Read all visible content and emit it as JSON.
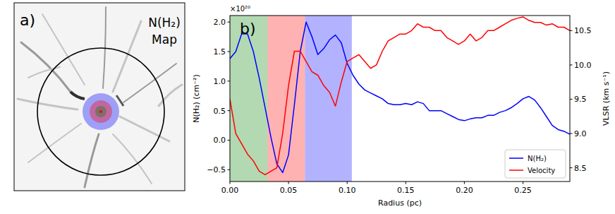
{
  "map_panel": {
    "label": "a)",
    "title": "N(H₂)",
    "subtitle": "Map"
  },
  "chart_data": {
    "type": "line",
    "panel_label": "b)",
    "x_label": "Radius (pc)",
    "y_label": "N(H₂) (cm⁻²)",
    "y_scale_label": "×10²⁰",
    "y2_label": "VLSR (km s⁻¹)",
    "x": [
      0,
      0.005,
      0.01,
      0.015,
      0.02,
      0.025,
      0.03,
      0.035,
      0.04,
      0.045,
      0.05,
      0.055,
      0.06,
      0.065,
      0.07,
      0.075,
      0.08,
      0.085,
      0.09,
      0.095,
      0.1,
      0.105,
      0.11,
      0.115,
      0.12,
      0.125,
      0.13,
      0.135,
      0.14,
      0.145,
      0.15,
      0.155,
      0.16,
      0.165,
      0.17,
      0.175,
      0.18,
      0.185,
      0.19,
      0.195,
      0.2,
      0.205,
      0.21,
      0.215,
      0.22,
      0.225,
      0.23,
      0.235,
      0.24,
      0.245,
      0.25,
      0.255,
      0.26,
      0.265,
      0.27,
      0.275,
      0.28,
      0.285,
      0.29
    ],
    "series": [
      {
        "name": "N(H₂)",
        "color": "#0000ff",
        "values": [
          1.38,
          1.5,
          1.8,
          1.8,
          1.5,
          1.05,
          0.55,
          0.05,
          -0.4,
          -0.55,
          -0.25,
          0.6,
          1.5,
          2.0,
          1.75,
          1.45,
          1.55,
          1.7,
          1.78,
          1.65,
          1.3,
          1.1,
          0.95,
          0.85,
          0.8,
          0.75,
          0.7,
          0.62,
          0.6,
          0.6,
          0.62,
          0.6,
          0.65,
          0.62,
          0.5,
          0.5,
          0.5,
          0.45,
          0.4,
          0.35,
          0.33,
          0.36,
          0.38,
          0.38,
          0.42,
          0.42,
          0.47,
          0.5,
          0.55,
          0.62,
          0.7,
          0.74,
          0.68,
          0.55,
          0.4,
          0.25,
          0.18,
          0.15,
          0.1
        ]
      },
      {
        "name": "Velocity",
        "color": "#ff0000",
        "axis": "y2",
        "values": [
          9.5,
          9.0,
          8.85,
          8.7,
          8.6,
          8.45,
          8.4,
          8.45,
          8.5,
          9.0,
          9.7,
          10.2,
          10.2,
          10.05,
          9.9,
          9.85,
          9.7,
          9.6,
          9.4,
          9.75,
          10.05,
          10.1,
          10.15,
          10.05,
          9.95,
          10.0,
          10.2,
          10.35,
          10.4,
          10.45,
          10.45,
          10.5,
          10.6,
          10.55,
          10.55,
          10.5,
          10.5,
          10.4,
          10.35,
          10.3,
          10.35,
          10.45,
          10.35,
          10.4,
          10.5,
          10.5,
          10.55,
          10.6,
          10.65,
          10.68,
          10.7,
          10.65,
          10.62,
          10.62,
          10.58,
          10.6,
          10.55,
          10.55,
          10.5
        ]
      }
    ],
    "regions": [
      {
        "x0": 0,
        "x1": 0.032,
        "color": "green"
      },
      {
        "x0": 0.032,
        "x1": 0.064,
        "color": "red"
      },
      {
        "x0": 0.064,
        "x1": 0.104,
        "color": "blue"
      }
    ],
    "xlim": [
      0,
      0.29
    ],
    "xticks": [
      {
        "value": 0,
        "label": "0.00"
      },
      {
        "value": 0.05,
        "label": "0.05"
      },
      {
        "value": 0.1,
        "label": "0.10"
      },
      {
        "value": 0.15,
        "label": "0.15"
      },
      {
        "value": 0.2,
        "label": "0.20"
      },
      {
        "value": 0.25,
        "label": "0.25"
      }
    ],
    "ylim": [
      -0.7,
      2.11
    ],
    "yticks": [
      {
        "value": -0.5,
        "label": "−0.5"
      },
      {
        "value": 0,
        "label": "0.0"
      },
      {
        "value": 0.5,
        "label": "0.5"
      },
      {
        "value": 1,
        "label": "1.0"
      },
      {
        "value": 1.5,
        "label": "1.5"
      },
      {
        "value": 2,
        "label": "2.0"
      }
    ],
    "y2lim": [
      8.3,
      10.72
    ],
    "y2ticks": [
      {
        "value": 8.5,
        "label": "8.5"
      },
      {
        "value": 9,
        "label": "9.0"
      },
      {
        "value": 9.5,
        "label": "9.5"
      },
      {
        "value": 10,
        "label": "10.0"
      },
      {
        "value": 10.5,
        "label": "10.5"
      }
    ],
    "legend": "lower right",
    "grid": false
  }
}
